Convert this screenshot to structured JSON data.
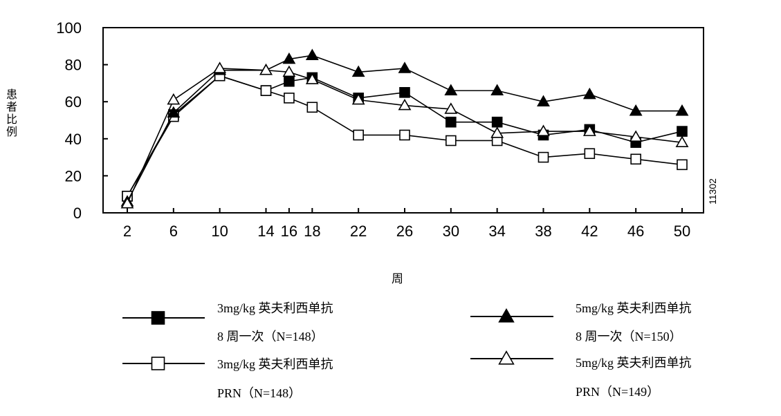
{
  "chart_data": {
    "type": "line",
    "title": "",
    "xlabel": "周",
    "ylabel": "患者比例",
    "side_id": "11302",
    "x": [
      2,
      6,
      10,
      14,
      16,
      18,
      22,
      26,
      30,
      34,
      38,
      42,
      46,
      50
    ],
    "x_ticks": [
      "2",
      "6",
      "10",
      "14",
      "16",
      "18",
      "22",
      "26",
      "30",
      "34",
      "38",
      "42",
      "46",
      "50"
    ],
    "y_ticks": [
      "0",
      "20",
      "40",
      "60",
      "80",
      "100"
    ],
    "ylim": [
      0,
      100
    ],
    "grid": false,
    "legend_position": "bottom",
    "series": [
      {
        "marker": "filled-square",
        "legend_line1": "3mg/kg  英夫利西单抗",
        "legend_line2": "8 周一次（N=148）",
        "values": [
          9,
          53,
          74,
          66,
          71,
          73,
          62,
          65,
          49,
          49,
          42,
          45,
          38,
          44
        ]
      },
      {
        "marker": "open-square",
        "legend_line1": "3mg/kg  英夫利西单抗",
        "legend_line2": "PRN（N=148）",
        "values": [
          9,
          52,
          74,
          66,
          62,
          57,
          42,
          42,
          39,
          39,
          30,
          32,
          29,
          26
        ]
      },
      {
        "marker": "filled-triangle",
        "legend_line1": "5mg/kg  英夫利西单抗",
        "legend_line2": "8 周一次（N=150）",
        "values": [
          6,
          54,
          77,
          77,
          83,
          85,
          76,
          78,
          66,
          66,
          60,
          64,
          55,
          55
        ]
      },
      {
        "marker": "open-triangle",
        "legend_line1": "5mg/kg  英夫利西单抗",
        "legend_line2": "PRN（N=149）",
        "values": [
          5,
          61,
          78,
          77,
          76,
          72,
          61,
          58,
          56,
          43,
          44,
          44,
          41,
          38
        ]
      }
    ]
  }
}
